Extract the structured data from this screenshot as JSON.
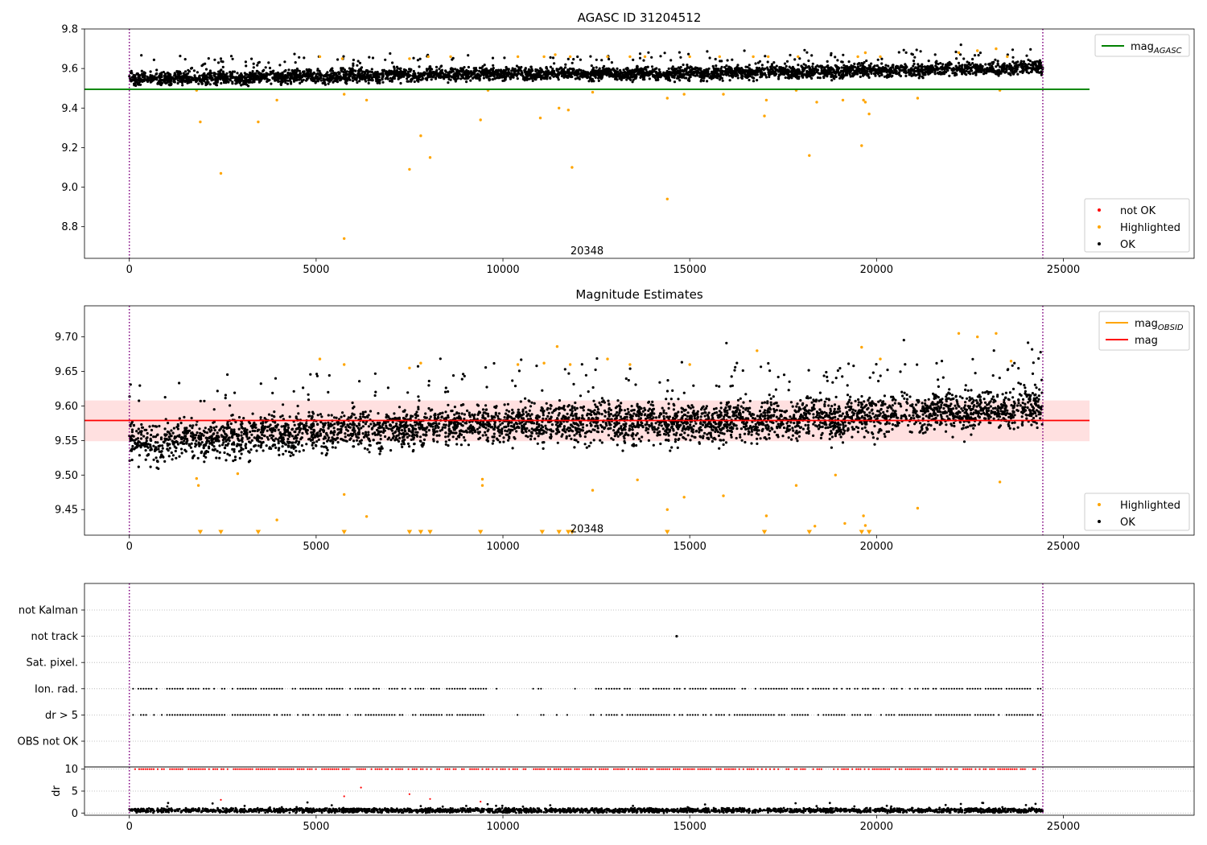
{
  "chart_data": [
    {
      "type": "scatter",
      "title": "AGASC ID 31204512",
      "xlim": [
        -1200,
        28500
      ],
      "ylim": [
        8.64,
        9.8
      ],
      "xticks": [
        0,
        5000,
        10000,
        15000,
        20000,
        25000
      ],
      "yticks": [
        8.8,
        9.0,
        9.2,
        9.4,
        9.6,
        9.8
      ],
      "ytick_labels": [
        "8.8",
        "9.0",
        "9.2",
        "9.4",
        "9.6",
        "9.8"
      ],
      "vlines": [
        0,
        24450
      ],
      "obsid_label": {
        "text": "20348",
        "x": 12250,
        "y": 8.66
      },
      "hline": {
        "name": "mag_AGASC",
        "y": 9.495,
        "x": [
          -1200,
          25700
        ],
        "color": "#008000"
      },
      "legend_top": [
        {
          "label": "mag",
          "sub": "AGASC",
          "color": "#008000",
          "kind": "line"
        }
      ],
      "legend_bottom": [
        {
          "label": "not OK",
          "color": "#ff0000",
          "kind": "dot"
        },
        {
          "label": "Highlighted",
          "color": "#ffa500",
          "kind": "dot"
        },
        {
          "label": "OK",
          "color": "#000000",
          "kind": "dot"
        }
      ],
      "series": [
        {
          "name": "OK",
          "color": "#000000",
          "x_range": [
            0,
            24450
          ],
          "trend": [
            [
              0,
              9.545
            ],
            [
              5000,
              9.56
            ],
            [
              10000,
              9.575
            ],
            [
              15000,
              9.575
            ],
            [
              20000,
              9.59
            ],
            [
              24450,
              9.605
            ]
          ],
          "spread": 0.035
        },
        {
          "name": "Highlighted",
          "color": "#ffa500",
          "points": [
            [
              1800,
              9.49
            ],
            [
              1900,
              9.33
            ],
            [
              2450,
              9.07
            ],
            [
              3450,
              9.33
            ],
            [
              3950,
              9.44
            ],
            [
              5750,
              8.74
            ],
            [
              5750,
              9.47
            ],
            [
              6350,
              9.44
            ],
            [
              7500,
              9.09
            ],
            [
              7800,
              9.26
            ],
            [
              8050,
              9.15
            ],
            [
              9400,
              9.34
            ],
            [
              9600,
              9.49
            ],
            [
              11000,
              9.35
            ],
            [
              11500,
              9.4
            ],
            [
              11750,
              9.39
            ],
            [
              11850,
              9.1
            ],
            [
              12400,
              9.48
            ],
            [
              14400,
              8.94
            ],
            [
              14400,
              9.45
            ],
            [
              14850,
              9.47
            ],
            [
              15900,
              9.47
            ],
            [
              17000,
              9.36
            ],
            [
              17050,
              9.44
            ],
            [
              17850,
              9.49
            ],
            [
              18200,
              9.16
            ],
            [
              18400,
              9.43
            ],
            [
              19100,
              9.44
            ],
            [
              19600,
              9.21
            ],
            [
              19650,
              9.44
            ],
            [
              19700,
              9.43
            ],
            [
              19800,
              9.37
            ],
            [
              21100,
              9.45
            ],
            [
              23300,
              9.49
            ],
            [
              5100,
              9.66
            ],
            [
              5700,
              9.65
            ],
            [
              7500,
              9.65
            ],
            [
              8000,
              9.66
            ],
            [
              8600,
              9.66
            ],
            [
              10400,
              9.66
            ],
            [
              11100,
              9.66
            ],
            [
              11400,
              9.67
            ],
            [
              11800,
              9.66
            ],
            [
              12800,
              9.66
            ],
            [
              13400,
              9.66
            ],
            [
              13800,
              9.66
            ],
            [
              15000,
              9.66
            ],
            [
              15800,
              9.66
            ],
            [
              16700,
              9.66
            ],
            [
              17100,
              9.66
            ],
            [
              17900,
              9.66
            ],
            [
              19500,
              9.66
            ],
            [
              19700,
              9.68
            ],
            [
              20100,
              9.66
            ],
            [
              22200,
              9.68
            ],
            [
              22700,
              9.69
            ],
            [
              23200,
              9.7
            ],
            [
              23500,
              9.66
            ]
          ]
        }
      ]
    },
    {
      "type": "scatter",
      "title": "Magnitude Estimates",
      "xlim": [
        -1200,
        28500
      ],
      "ylim": [
        9.413,
        9.745
      ],
      "xticks": [
        0,
        5000,
        10000,
        15000,
        20000,
        25000
      ],
      "yticks": [
        9.45,
        9.5,
        9.55,
        9.6,
        9.65,
        9.7
      ],
      "ytick_labels": [
        "9.45",
        "9.50",
        "9.55",
        "9.60",
        "9.65",
        "9.70"
      ],
      "vlines": [
        0,
        24450
      ],
      "obsid_label": {
        "text": "20348",
        "x": 12250,
        "y": 9.417
      },
      "band": {
        "y": [
          9.549,
          9.608
        ],
        "x": [
          -1200,
          25700
        ],
        "color": "#ff0000"
      },
      "hline": {
        "name": "mag",
        "y": 9.579,
        "x": [
          -1200,
          25700
        ],
        "color": "#ff0000"
      },
      "legend_top": [
        {
          "label": "mag",
          "sub": "OBSID",
          "color": "#ffa500",
          "kind": "line"
        },
        {
          "label": "mag",
          "sub": "",
          "color": "#ff0000",
          "kind": "line"
        }
      ],
      "legend_bottom": [
        {
          "label": "Highlighted",
          "color": "#ffa500",
          "kind": "dot"
        },
        {
          "label": "OK",
          "color": "#000000",
          "kind": "dot"
        }
      ],
      "series": [
        {
          "name": "OK",
          "color": "#000000",
          "x_range": [
            0,
            24450
          ],
          "trend": [
            [
              0,
              9.545
            ],
            [
              5000,
              9.562
            ],
            [
              10000,
              9.575
            ],
            [
              15000,
              9.575
            ],
            [
              20000,
              9.585
            ],
            [
              24450,
              9.6
            ]
          ],
          "spread": 0.03
        },
        {
          "name": "Highlighted",
          "color": "#ffa500",
          "points": [
            [
              1800,
              9.495
            ],
            [
              1850,
              9.485
            ],
            [
              2900,
              9.502
            ],
            [
              3950,
              9.435
            ],
            [
              5100,
              9.668
            ],
            [
              5750,
              9.472
            ],
            [
              5750,
              9.66
            ],
            [
              6350,
              9.44
            ],
            [
              7500,
              9.655
            ],
            [
              7800,
              9.662
            ],
            [
              9450,
              9.494
            ],
            [
              9450,
              9.485
            ],
            [
              10400,
              9.66
            ],
            [
              11100,
              9.662
            ],
            [
              11450,
              9.686
            ],
            [
              11800,
              9.66
            ],
            [
              12400,
              9.478
            ],
            [
              12800,
              9.668
            ],
            [
              13400,
              9.66
            ],
            [
              13600,
              9.493
            ],
            [
              14400,
              9.45
            ],
            [
              14850,
              9.468
            ],
            [
              15000,
              9.66
            ],
            [
              15900,
              9.47
            ],
            [
              16800,
              9.68
            ],
            [
              17050,
              9.441
            ],
            [
              17850,
              9.485
            ],
            [
              18350,
              9.426
            ],
            [
              18900,
              9.5
            ],
            [
              19150,
              9.43
            ],
            [
              19600,
              9.685
            ],
            [
              19650,
              9.441
            ],
            [
              19700,
              9.427
            ],
            [
              20100,
              9.668
            ],
            [
              21100,
              9.452
            ],
            [
              22200,
              9.705
            ],
            [
              22700,
              9.7
            ],
            [
              23200,
              9.705
            ],
            [
              23300,
              9.49
            ],
            [
              23600,
              9.665
            ]
          ]
        },
        {
          "name": "Highlighted (off-scale)",
          "color": "#ffa500",
          "marker": "triangle-down",
          "x": [
            1900,
            2450,
            3450,
            5750,
            7500,
            7800,
            8050,
            9400,
            11050,
            11500,
            11750,
            11850,
            14400,
            17000,
            18200,
            19600,
            19800
          ]
        }
      ]
    },
    {
      "type": "scatter",
      "title": "",
      "xlim": [
        -1200,
        28500
      ],
      "categories": [
        "not Kalman",
        "not track",
        "Sat. pixel.",
        "Ion. rad.",
        "dr > 5",
        "OBS not OK"
      ],
      "vlines": [
        0,
        24450
      ],
      "series": [
        {
          "name": "not track",
          "color": "#000000",
          "x": [
            14650
          ]
        },
        {
          "name": "Ion. rad.",
          "color": "#000000",
          "flagged": true
        },
        {
          "name": "dr > 5",
          "color": "#000000",
          "flagged": true
        }
      ]
    },
    {
      "type": "scatter",
      "title": "",
      "ylabel": "dr",
      "xlim": [
        -1200,
        28500
      ],
      "ylim": [
        -0.5,
        10.5
      ],
      "xticks": [
        0,
        5000,
        10000,
        15000,
        20000,
        25000
      ],
      "yticks": [
        0,
        5,
        10
      ],
      "ytick_labels": [
        "0",
        "5",
        "10"
      ],
      "vlines": [
        0,
        24450
      ],
      "series": [
        {
          "name": "OK",
          "color": "#000000",
          "x_range": [
            0,
            24450
          ],
          "typical": 0.6
        },
        {
          "name": "not OK",
          "color": "#ff0000",
          "capped": 10,
          "points": [
            [
              2450,
              3.0
            ],
            [
              5750,
              3.8
            ],
            [
              6200,
              5.8
            ],
            [
              7500,
              4.3
            ],
            [
              8050,
              3.2
            ],
            [
              9400,
              2.6
            ]
          ]
        }
      ]
    }
  ]
}
